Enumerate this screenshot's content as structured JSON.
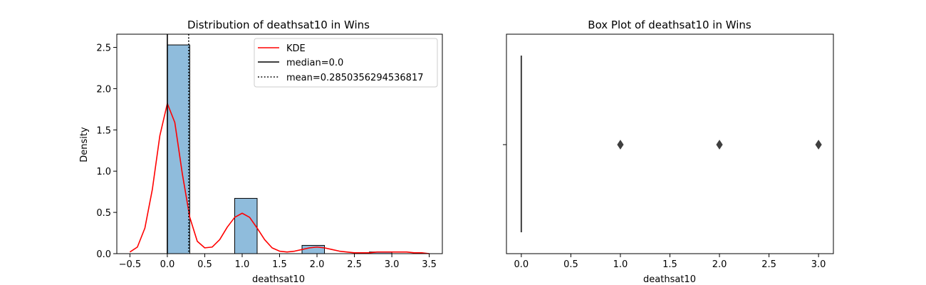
{
  "chart_data": [
    {
      "type": "histogram",
      "title": "Distribution of deathsat10 in Wins",
      "xlabel": "deathsat10",
      "ylabel": "Density",
      "xlim": [
        -0.675,
        3.675
      ],
      "ylim": [
        0,
        2.66
      ],
      "xticks": [
        -0.5,
        0.0,
        0.5,
        1.0,
        1.5,
        2.0,
        2.5,
        3.0,
        3.5
      ],
      "xtick_labels": [
        "−0.5",
        "0.0",
        "0.5",
        "1.0",
        "1.5",
        "2.0",
        "2.5",
        "3.0",
        "3.5"
      ],
      "yticks": [
        0.0,
        0.5,
        1.0,
        1.5,
        2.0,
        2.5
      ],
      "ytick_labels": [
        "0.0",
        "0.5",
        "1.0",
        "1.5",
        "2.0",
        "2.5"
      ],
      "grid": false,
      "legend_position": "top-right",
      "bars": [
        {
          "x0": 0.0,
          "x1": 0.3,
          "density": 2.53
        },
        {
          "x0": 0.9,
          "x1": 1.2,
          "density": 0.67
        },
        {
          "x0": 1.8,
          "x1": 2.1,
          "density": 0.1
        },
        {
          "x0": 2.7,
          "x1": 3.0,
          "density": 0.02
        }
      ],
      "bar_color": "#8fbcdc",
      "series": [
        {
          "name": "KDE",
          "style": "line",
          "color": "#ff0000",
          "x": [
            -0.5,
            -0.4,
            -0.3,
            -0.2,
            -0.1,
            0.0,
            0.1,
            0.2,
            0.3,
            0.4,
            0.5,
            0.6,
            0.7,
            0.8,
            0.9,
            1.0,
            1.1,
            1.2,
            1.3,
            1.4,
            1.5,
            1.6,
            1.7,
            1.8,
            1.9,
            2.0,
            2.1,
            2.2,
            2.3,
            2.4,
            2.5,
            2.6,
            2.7,
            2.8,
            2.9,
            3.0,
            3.1,
            3.2,
            3.3,
            3.4,
            3.5
          ],
          "y": [
            0.02,
            0.08,
            0.31,
            0.78,
            1.43,
            1.82,
            1.59,
            0.97,
            0.44,
            0.15,
            0.07,
            0.08,
            0.17,
            0.32,
            0.44,
            0.49,
            0.44,
            0.31,
            0.17,
            0.07,
            0.03,
            0.02,
            0.03,
            0.05,
            0.07,
            0.08,
            0.07,
            0.05,
            0.03,
            0.02,
            0.01,
            0.01,
            0.01,
            0.02,
            0.02,
            0.02,
            0.02,
            0.02,
            0.01,
            0.01,
            0.0
          ]
        },
        {
          "name": "median=0.0",
          "style": "vline",
          "color": "#000000",
          "dash": "solid",
          "x": 0.0
        },
        {
          "name": "mean=0.2850356294536817",
          "style": "vline",
          "color": "#000000",
          "dash": "dotted",
          "x": 0.2850356294536817
        }
      ]
    },
    {
      "type": "box",
      "title": "Box Plot of deathsat10 in Wins",
      "xlabel": "deathsat10",
      "xlim": [
        -0.15,
        3.15
      ],
      "xticks": [
        0.0,
        0.5,
        1.0,
        1.5,
        2.0,
        2.5,
        3.0
      ],
      "xtick_labels": [
        "0.0",
        "0.5",
        "1.0",
        "1.5",
        "2.0",
        "2.5",
        "3.0"
      ],
      "grid": false,
      "box": {
        "q1": 0.0,
        "median": 0.0,
        "q3": 0.0,
        "whisker_low": 0.0,
        "whisker_high": 0.0
      },
      "outliers": [
        1.0,
        2.0,
        3.0
      ],
      "color": "#3f3f3f"
    }
  ]
}
